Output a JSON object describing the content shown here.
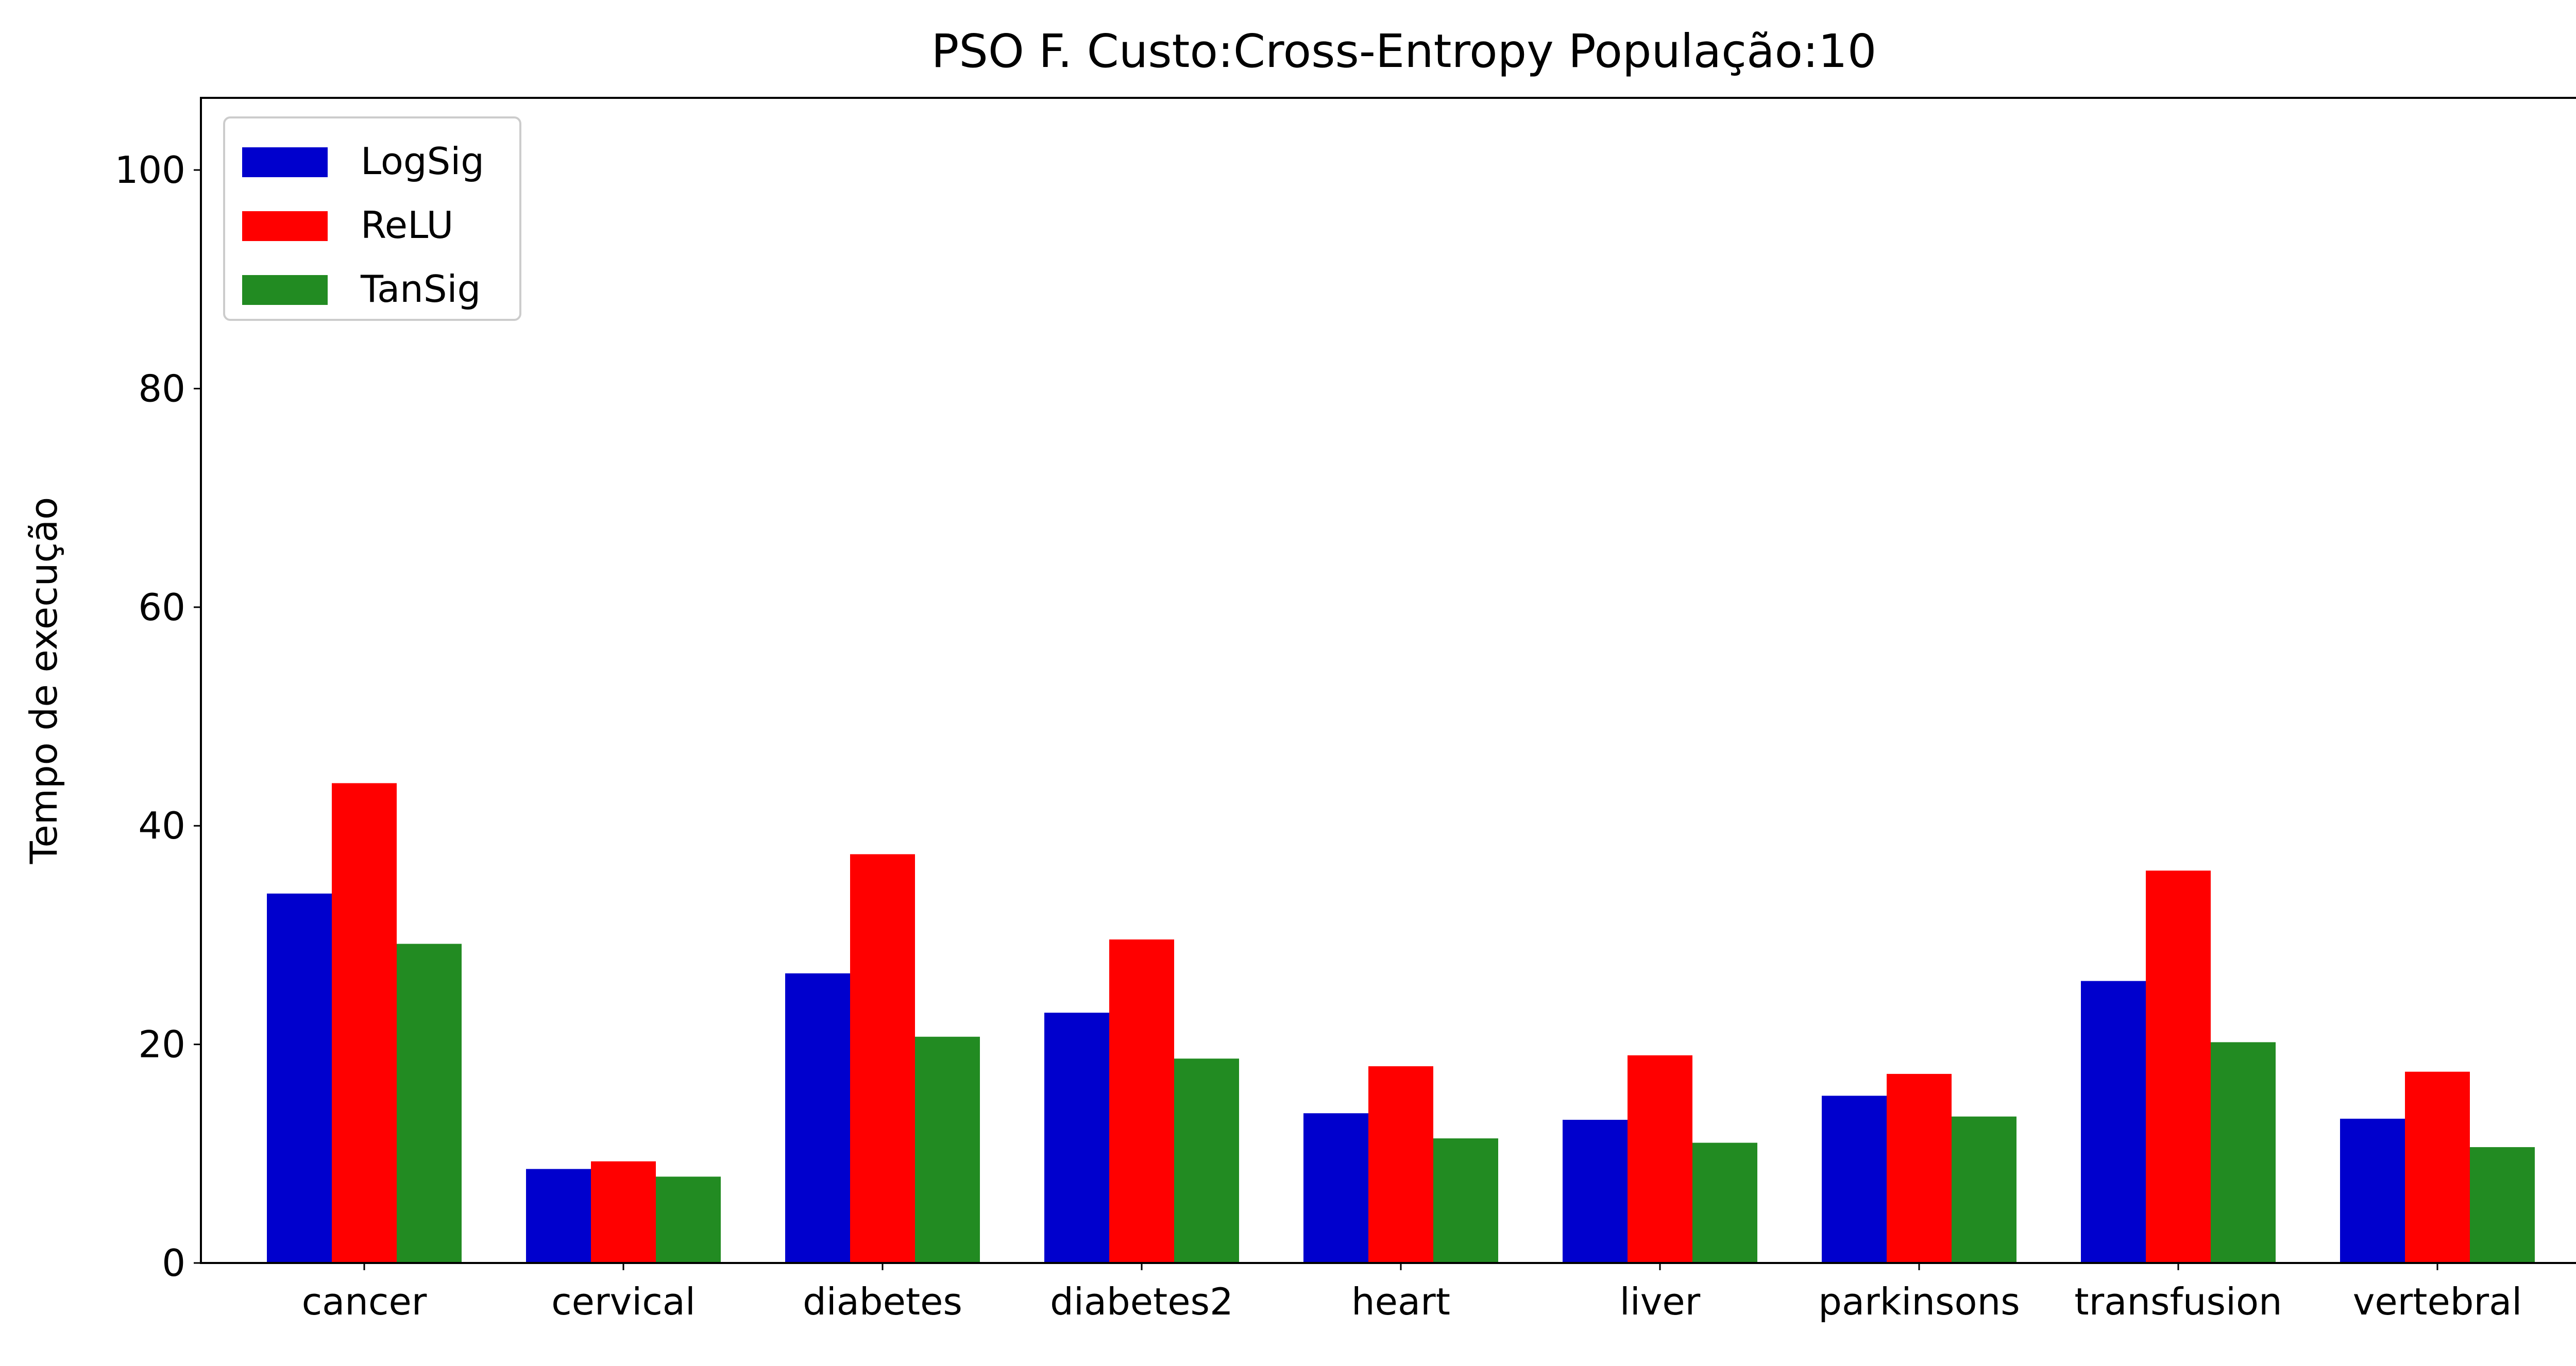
{
  "chart_data": {
    "type": "bar",
    "title": "PSO F. Custo:Cross-Entropy População:10",
    "xlabel": "",
    "ylabel": "Tempo de execução",
    "ylim": [
      0,
      106.6
    ],
    "yticks": [
      0,
      20,
      40,
      60,
      80,
      100
    ],
    "categories": [
      "cancer",
      "cervical",
      "diabetes",
      "diabetes2",
      "heart",
      "liver",
      "parkinsons",
      "transfusion",
      "vertebral"
    ],
    "series": [
      {
        "name": "LogSig",
        "color": "#0000cd",
        "values": [
          33.8,
          8.6,
          26.5,
          22.9,
          13.7,
          13.1,
          15.3,
          25.8,
          13.2
        ]
      },
      {
        "name": "ReLU",
        "color": "#ff0000",
        "values": [
          43.9,
          9.3,
          37.4,
          29.6,
          18.0,
          19.0,
          17.3,
          35.9,
          17.5
        ]
      },
      {
        "name": "TanSig",
        "color": "#228b22",
        "values": [
          29.2,
          7.9,
          20.7,
          18.7,
          11.4,
          11.0,
          13.4,
          20.2,
          10.6
        ]
      }
    ],
    "legend": "top-left",
    "grid": false
  }
}
